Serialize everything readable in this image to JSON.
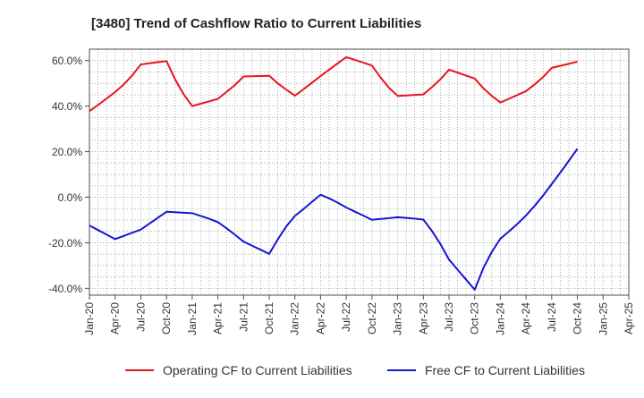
{
  "chart_data": {
    "type": "line",
    "title": "[3480]  Trend of Cashflow Ratio to Current Liabilities",
    "xlabel": "",
    "ylabel": "",
    "x_tick_labels": [
      "Jan-20",
      "Apr-20",
      "Jul-20",
      "Oct-20",
      "Jan-21",
      "Apr-21",
      "Jul-21",
      "Oct-21",
      "Jan-22",
      "Apr-22",
      "Jul-22",
      "Oct-22",
      "Jan-23",
      "Apr-23",
      "Jul-23",
      "Oct-23",
      "Jan-24",
      "Apr-24",
      "Jul-24",
      "Oct-24",
      "Jan-25",
      "Apr-25"
    ],
    "y_tick_labels": [
      "-40.0%",
      "-20.0%",
      "0.0%",
      "20.0%",
      "40.0%",
      "60.0%"
    ],
    "y_ticks": [
      -40,
      -20,
      0,
      20,
      40,
      60
    ],
    "ylim": [
      -43,
      65
    ],
    "grid": true,
    "legend_position": "bottom",
    "series": [
      {
        "name": "Operating CF to Current Liabilities",
        "color": "#e8141c",
        "points": [
          [
            "Jan-20",
            37.8
          ],
          [
            "Feb-20",
            40.5
          ],
          [
            "Mar-20",
            43.3
          ],
          [
            "Apr-20",
            46.2
          ],
          [
            "May-20",
            49.5
          ],
          [
            "Jun-20",
            53.5
          ],
          [
            "Jul-20",
            58.3
          ],
          [
            "Aug-20",
            58.8
          ],
          [
            "Sep-20",
            59.3
          ],
          [
            "Oct-20",
            59.8
          ],
          [
            "Nov-20",
            51.8
          ],
          [
            "Dec-20",
            45.2
          ],
          [
            "Jan-21",
            40.0
          ],
          [
            "Feb-21",
            41.1
          ],
          [
            "Mar-21",
            42.1
          ],
          [
            "Apr-21",
            43.2
          ],
          [
            "May-21",
            46.2
          ],
          [
            "Jun-21",
            49.3
          ],
          [
            "Jul-21",
            53.0
          ],
          [
            "Aug-21",
            53.1
          ],
          [
            "Sep-21",
            53.2
          ],
          [
            "Oct-21",
            53.3
          ],
          [
            "Nov-21",
            50.0
          ],
          [
            "Dec-21",
            47.2
          ],
          [
            "Jan-22",
            44.6
          ],
          [
            "Feb-22",
            47.4
          ],
          [
            "Mar-22",
            50.3
          ],
          [
            "Apr-22",
            53.2
          ],
          [
            "May-22",
            56.0
          ],
          [
            "Jun-22",
            58.8
          ],
          [
            "Jul-22",
            61.5
          ],
          [
            "Aug-22",
            60.3
          ],
          [
            "Sep-22",
            59.1
          ],
          [
            "Oct-22",
            57.8
          ],
          [
            "Nov-22",
            52.6
          ],
          [
            "Dec-22",
            48.0
          ],
          [
            "Jan-23",
            44.5
          ],
          [
            "Feb-23",
            44.7
          ],
          [
            "Mar-23",
            44.9
          ],
          [
            "Apr-23",
            45.1
          ],
          [
            "May-23",
            48.3
          ],
          [
            "Jun-23",
            51.8
          ],
          [
            "Jul-23",
            56.0
          ],
          [
            "Aug-23",
            54.7
          ],
          [
            "Sep-23",
            53.4
          ],
          [
            "Oct-23",
            52.1
          ],
          [
            "Nov-23",
            47.9
          ],
          [
            "Dec-23",
            44.5
          ],
          [
            "Jan-24",
            41.6
          ],
          [
            "Feb-24",
            43.2
          ],
          [
            "Mar-24",
            44.9
          ],
          [
            "Apr-24",
            46.6
          ],
          [
            "May-24",
            49.5
          ],
          [
            "Jun-24",
            52.8
          ],
          [
            "Jul-24",
            56.8
          ],
          [
            "Aug-24",
            57.7
          ],
          [
            "Sep-24",
            58.6
          ],
          [
            "Oct-24",
            59.5
          ]
        ]
      },
      {
        "name": "Free CF to Current Liabilities",
        "color": "#1515d4",
        "points": [
          [
            "Jan-20",
            -12.4
          ],
          [
            "Feb-20",
            -14.4
          ],
          [
            "Mar-20",
            -16.4
          ],
          [
            "Apr-20",
            -18.4
          ],
          [
            "May-20",
            -17.0
          ],
          [
            "Jun-20",
            -15.6
          ],
          [
            "Jul-20",
            -14.2
          ],
          [
            "Aug-20",
            -11.6
          ],
          [
            "Sep-20",
            -9.0
          ],
          [
            "Oct-20",
            -6.4
          ],
          [
            "Nov-20",
            -6.6
          ],
          [
            "Dec-20",
            -6.8
          ],
          [
            "Jan-21",
            -7.0
          ],
          [
            "Feb-21",
            -8.2
          ],
          [
            "Mar-21",
            -9.5
          ],
          [
            "Apr-21",
            -10.9
          ],
          [
            "May-21",
            -13.6
          ],
          [
            "Jun-21",
            -16.5
          ],
          [
            "Jul-21",
            -19.5
          ],
          [
            "Aug-21",
            -21.3
          ],
          [
            "Sep-21",
            -23.1
          ],
          [
            "Oct-21",
            -24.9
          ],
          [
            "Nov-21",
            -18.5
          ],
          [
            "Dec-21",
            -12.8
          ],
          [
            "Jan-22",
            -8.2
          ],
          [
            "Feb-22",
            -5.2
          ],
          [
            "Mar-22",
            -2.0
          ],
          [
            "Apr-22",
            1.1
          ],
          [
            "May-22",
            -0.5
          ],
          [
            "Jun-22",
            -2.4
          ],
          [
            "Jul-22",
            -4.5
          ],
          [
            "Aug-22",
            -6.3
          ],
          [
            "Sep-22",
            -8.1
          ],
          [
            "Oct-22",
            -9.9
          ],
          [
            "Nov-22",
            -9.5
          ],
          [
            "Dec-22",
            -9.2
          ],
          [
            "Jan-23",
            -8.8
          ],
          [
            "Feb-23",
            -9.1
          ],
          [
            "Mar-23",
            -9.4
          ],
          [
            "Apr-23",
            -9.8
          ],
          [
            "May-23",
            -14.8
          ],
          [
            "Jun-23",
            -20.6
          ],
          [
            "Jul-23",
            -27.4
          ],
          [
            "Aug-23",
            -31.8
          ],
          [
            "Sep-23",
            -36.2
          ],
          [
            "Oct-23",
            -40.6
          ],
          [
            "Nov-23",
            -31.2
          ],
          [
            "Dec-23",
            -24.0
          ],
          [
            "Jan-24",
            -18.2
          ],
          [
            "Feb-24",
            -15.0
          ],
          [
            "Mar-24",
            -11.7
          ],
          [
            "Apr-24",
            -8.0
          ],
          [
            "May-24",
            -3.8
          ],
          [
            "Jun-24",
            0.8
          ],
          [
            "Jul-24",
            5.8
          ],
          [
            "Aug-24",
            10.8
          ],
          [
            "Sep-24",
            16.0
          ],
          [
            "Oct-24",
            21.3
          ]
        ]
      }
    ]
  }
}
